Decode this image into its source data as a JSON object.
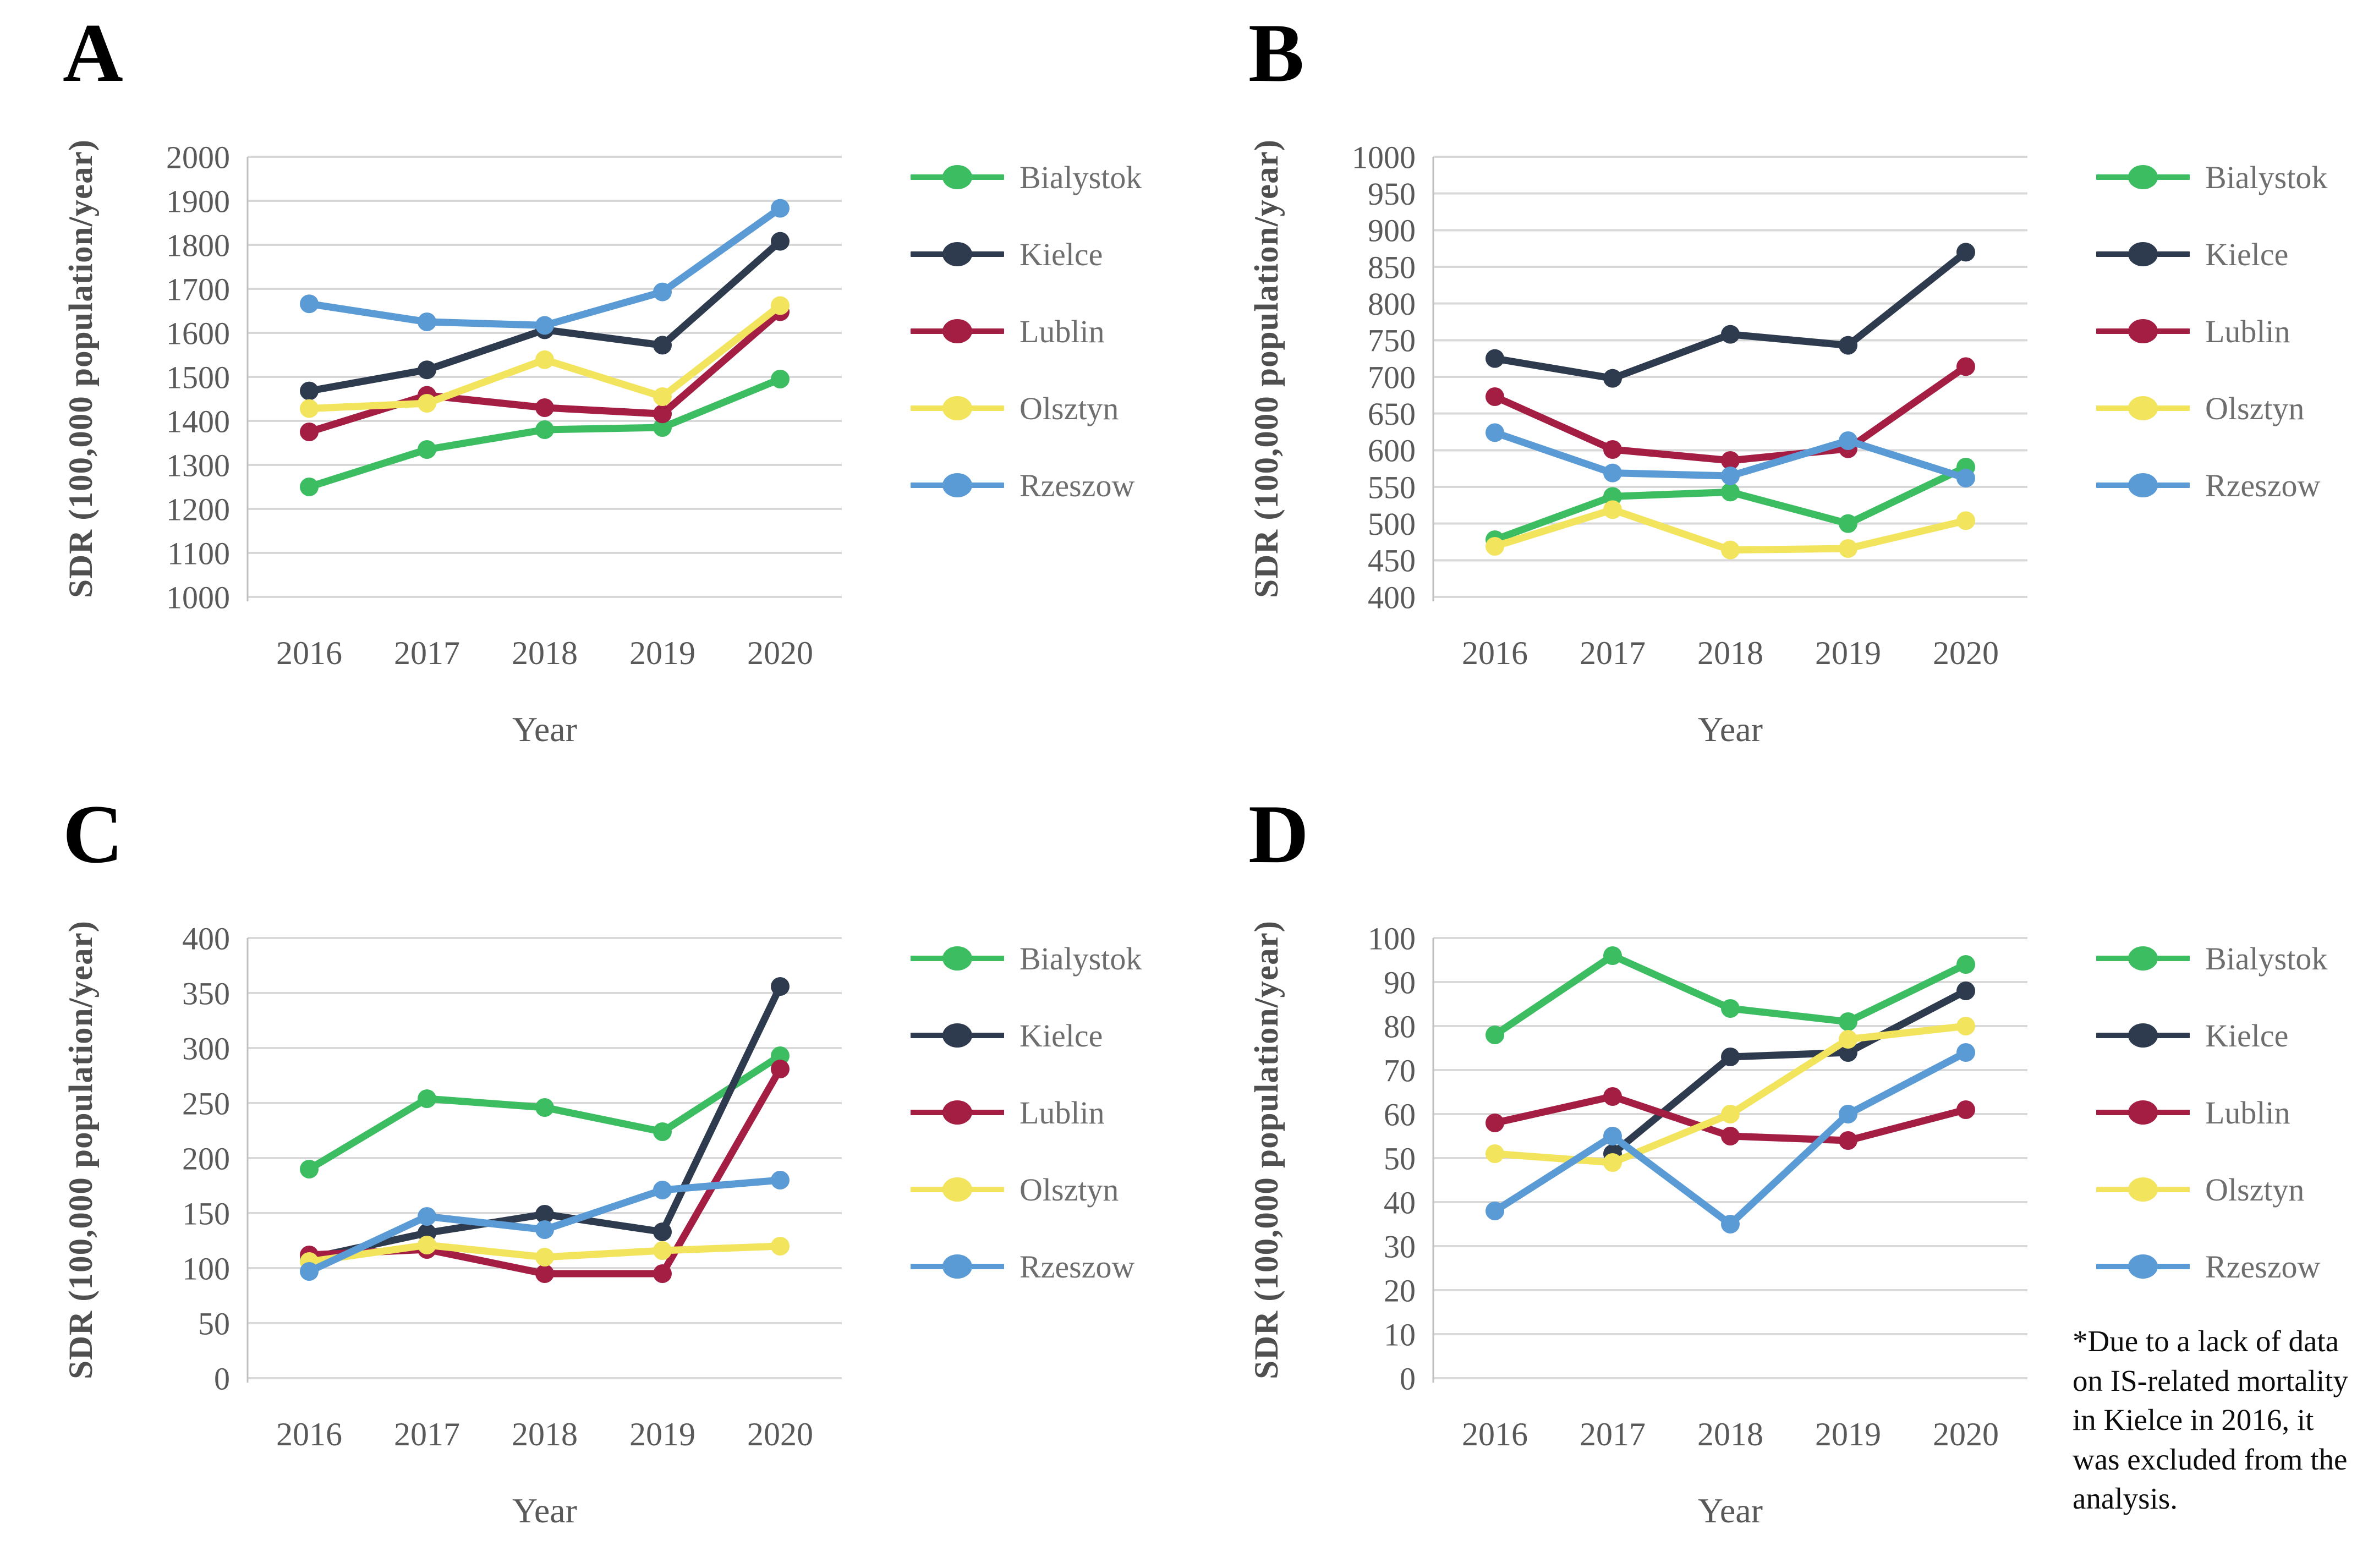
{
  "figure": {
    "background": "#ffffff",
    "note": "*Due to a lack of data on IS-related mortality in Kielce in 2016, it was excluded from the analysis.",
    "series_names": [
      "Bialystok",
      "Kielce",
      "Lublin",
      "Olsztyn",
      "Rzeszow"
    ],
    "colors": {
      "Bialystok": "#3DBD61",
      "Kielce": "#2E3B4E",
      "Lublin": "#A41E44",
      "Olsztyn": "#F2E45C",
      "Rzeszow": "#5B9BD5",
      "gridline": "#D9D9D9",
      "axis_line": "#BFBFBF",
      "tick_text": "#595959",
      "axis_title_text": "#4F4F4F",
      "legend_text": "#6E6E6E",
      "note_text": "#0D0D0D",
      "panel_letter": "#000000"
    },
    "panels": [
      {
        "label": "A",
        "y_axis_title": "SDR (100,000 population/year)",
        "x_axis_title": "Year"
      },
      {
        "label": "B",
        "y_axis_title": "SDR (100,000 population/year)",
        "x_axis_title": "Year"
      },
      {
        "label": "C",
        "y_axis_title": "SDR (100,000 population/year)",
        "x_axis_title": "Year"
      },
      {
        "label": "D",
        "y_axis_title": "SDR (100,000 population/year)",
        "x_axis_title": "Year"
      }
    ]
  },
  "chart_data": [
    {
      "type": "line",
      "panel": "A",
      "categories": [
        "2016",
        "2017",
        "2018",
        "2019",
        "2020"
      ],
      "xlabel": "Year",
      "ylabel": "SDR (100,000 population/year)",
      "ylim": [
        1000,
        2000
      ],
      "ytick_step": 100,
      "grid": true,
      "legend_position": "right",
      "series": [
        {
          "name": "Bialystok",
          "color": "#3DBD61",
          "values": [
            1250,
            1335,
            1380,
            1385,
            1495
          ]
        },
        {
          "name": "Kielce",
          "color": "#2E3B4E",
          "values": [
            1468,
            1516,
            1607,
            1572,
            1808
          ]
        },
        {
          "name": "Lublin",
          "color": "#A41E44",
          "values": [
            1375,
            1458,
            1430,
            1416,
            1648
          ]
        },
        {
          "name": "Olsztyn",
          "color": "#F2E45C",
          "values": [
            1428,
            1440,
            1539,
            1455,
            1662
          ]
        },
        {
          "name": "Rzeszow",
          "color": "#5B9BD5",
          "values": [
            1666,
            1625,
            1617,
            1693,
            1883
          ]
        }
      ]
    },
    {
      "type": "line",
      "panel": "B",
      "categories": [
        "2016",
        "2017",
        "2018",
        "2019",
        "2020"
      ],
      "xlabel": "Year",
      "ylabel": "SDR (100,000 population/year)",
      "ylim": [
        400,
        1000
      ],
      "ytick_step": 50,
      "grid": true,
      "legend_position": "right",
      "series": [
        {
          "name": "Bialystok",
          "color": "#3DBD61",
          "values": [
            478,
            537,
            543,
            500,
            577
          ]
        },
        {
          "name": "Kielce",
          "color": "#2E3B4E",
          "values": [
            725,
            698,
            758,
            743,
            870
          ]
        },
        {
          "name": "Lublin",
          "color": "#A41E44",
          "values": [
            673,
            601,
            586,
            602,
            714
          ]
        },
        {
          "name": "Olsztyn",
          "color": "#F2E45C",
          "values": [
            469,
            519,
            464,
            466,
            504
          ]
        },
        {
          "name": "Rzeszow",
          "color": "#5B9BD5",
          "values": [
            624,
            569,
            565,
            613,
            562
          ]
        }
      ]
    },
    {
      "type": "line",
      "panel": "C",
      "categories": [
        "2016",
        "2017",
        "2018",
        "2019",
        "2020"
      ],
      "xlabel": "Year",
      "ylabel": "SDR (100,000 population/year)",
      "ylim": [
        0,
        400
      ],
      "ytick_step": 50,
      "grid": true,
      "legend_position": "right",
      "series": [
        {
          "name": "Bialystok",
          "color": "#3DBD61",
          "values": [
            190,
            254,
            246,
            224,
            293
          ]
        },
        {
          "name": "Kielce",
          "color": "#2E3B4E",
          "values": [
            109,
            132,
            149,
            133,
            356
          ]
        },
        {
          "name": "Lublin",
          "color": "#A41E44",
          "values": [
            112,
            117,
            95,
            95,
            281
          ]
        },
        {
          "name": "Olsztyn",
          "color": "#F2E45C",
          "values": [
            106,
            121,
            110,
            116,
            120
          ]
        },
        {
          "name": "Rzeszow",
          "color": "#5B9BD5",
          "values": [
            97,
            147,
            135,
            171,
            180
          ]
        }
      ]
    },
    {
      "type": "line",
      "panel": "D",
      "categories": [
        "2016",
        "2017",
        "2018",
        "2019",
        "2020"
      ],
      "xlabel": "Year",
      "ylabel": "SDR (100,000 population/year)",
      "ylim": [
        0,
        100
      ],
      "ytick_step": 10,
      "grid": true,
      "legend_position": "right",
      "note": "*Due to a lack of data on IS-related mortality in Kielce in 2016, it was excluded from the analysis.",
      "series": [
        {
          "name": "Bialystok",
          "color": "#3DBD61",
          "values": [
            78,
            96,
            84,
            81,
            94
          ]
        },
        {
          "name": "Kielce",
          "color": "#2E3B4E",
          "values": [
            null,
            51,
            73,
            74,
            88
          ]
        },
        {
          "name": "Lublin",
          "color": "#A41E44",
          "values": [
            58,
            64,
            55,
            54,
            61
          ]
        },
        {
          "name": "Olsztyn",
          "color": "#F2E45C",
          "values": [
            51,
            49,
            60,
            77,
            80
          ]
        },
        {
          "name": "Rzeszow",
          "color": "#5B9BD5",
          "values": [
            38,
            55,
            35,
            60,
            74
          ]
        }
      ]
    }
  ]
}
